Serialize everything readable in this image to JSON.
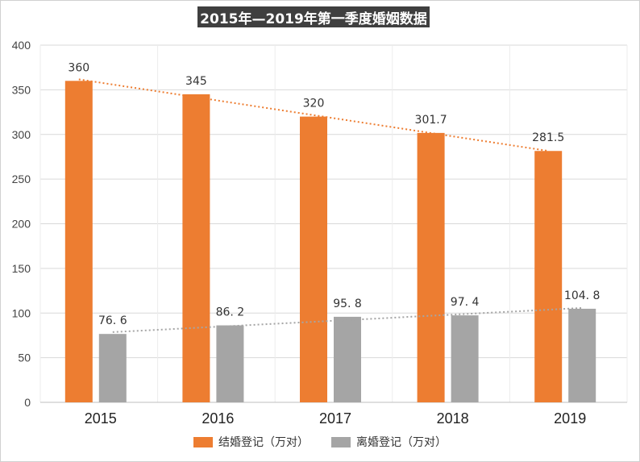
{
  "chart_data": {
    "type": "bar",
    "title": "2015年—2019年第一季度婚姻数据",
    "categories": [
      "2015",
      "2016",
      "2017",
      "2018",
      "2019"
    ],
    "ylim": [
      0,
      400
    ],
    "yticks": [
      0,
      50,
      100,
      150,
      200,
      250,
      300,
      350,
      400
    ],
    "grid": true,
    "legend_position": "bottom",
    "series": [
      {
        "name": "结婚登记（万对）",
        "values": [
          360,
          345,
          320,
          301.7,
          281.5
        ],
        "labels": [
          "360",
          "345",
          "320",
          "301.7",
          "281.5"
        ],
        "color": "#ED7D31",
        "trendline": "linear"
      },
      {
        "name": "离婚登记（万对）",
        "values": [
          76.6,
          86.2,
          95.8,
          97.4,
          104.8
        ],
        "labels": [
          "76. 6",
          "86. 2",
          "95. 8",
          "97. 4",
          "104. 8"
        ],
        "color": "#A5A5A5",
        "trendline": "linear"
      }
    ]
  }
}
